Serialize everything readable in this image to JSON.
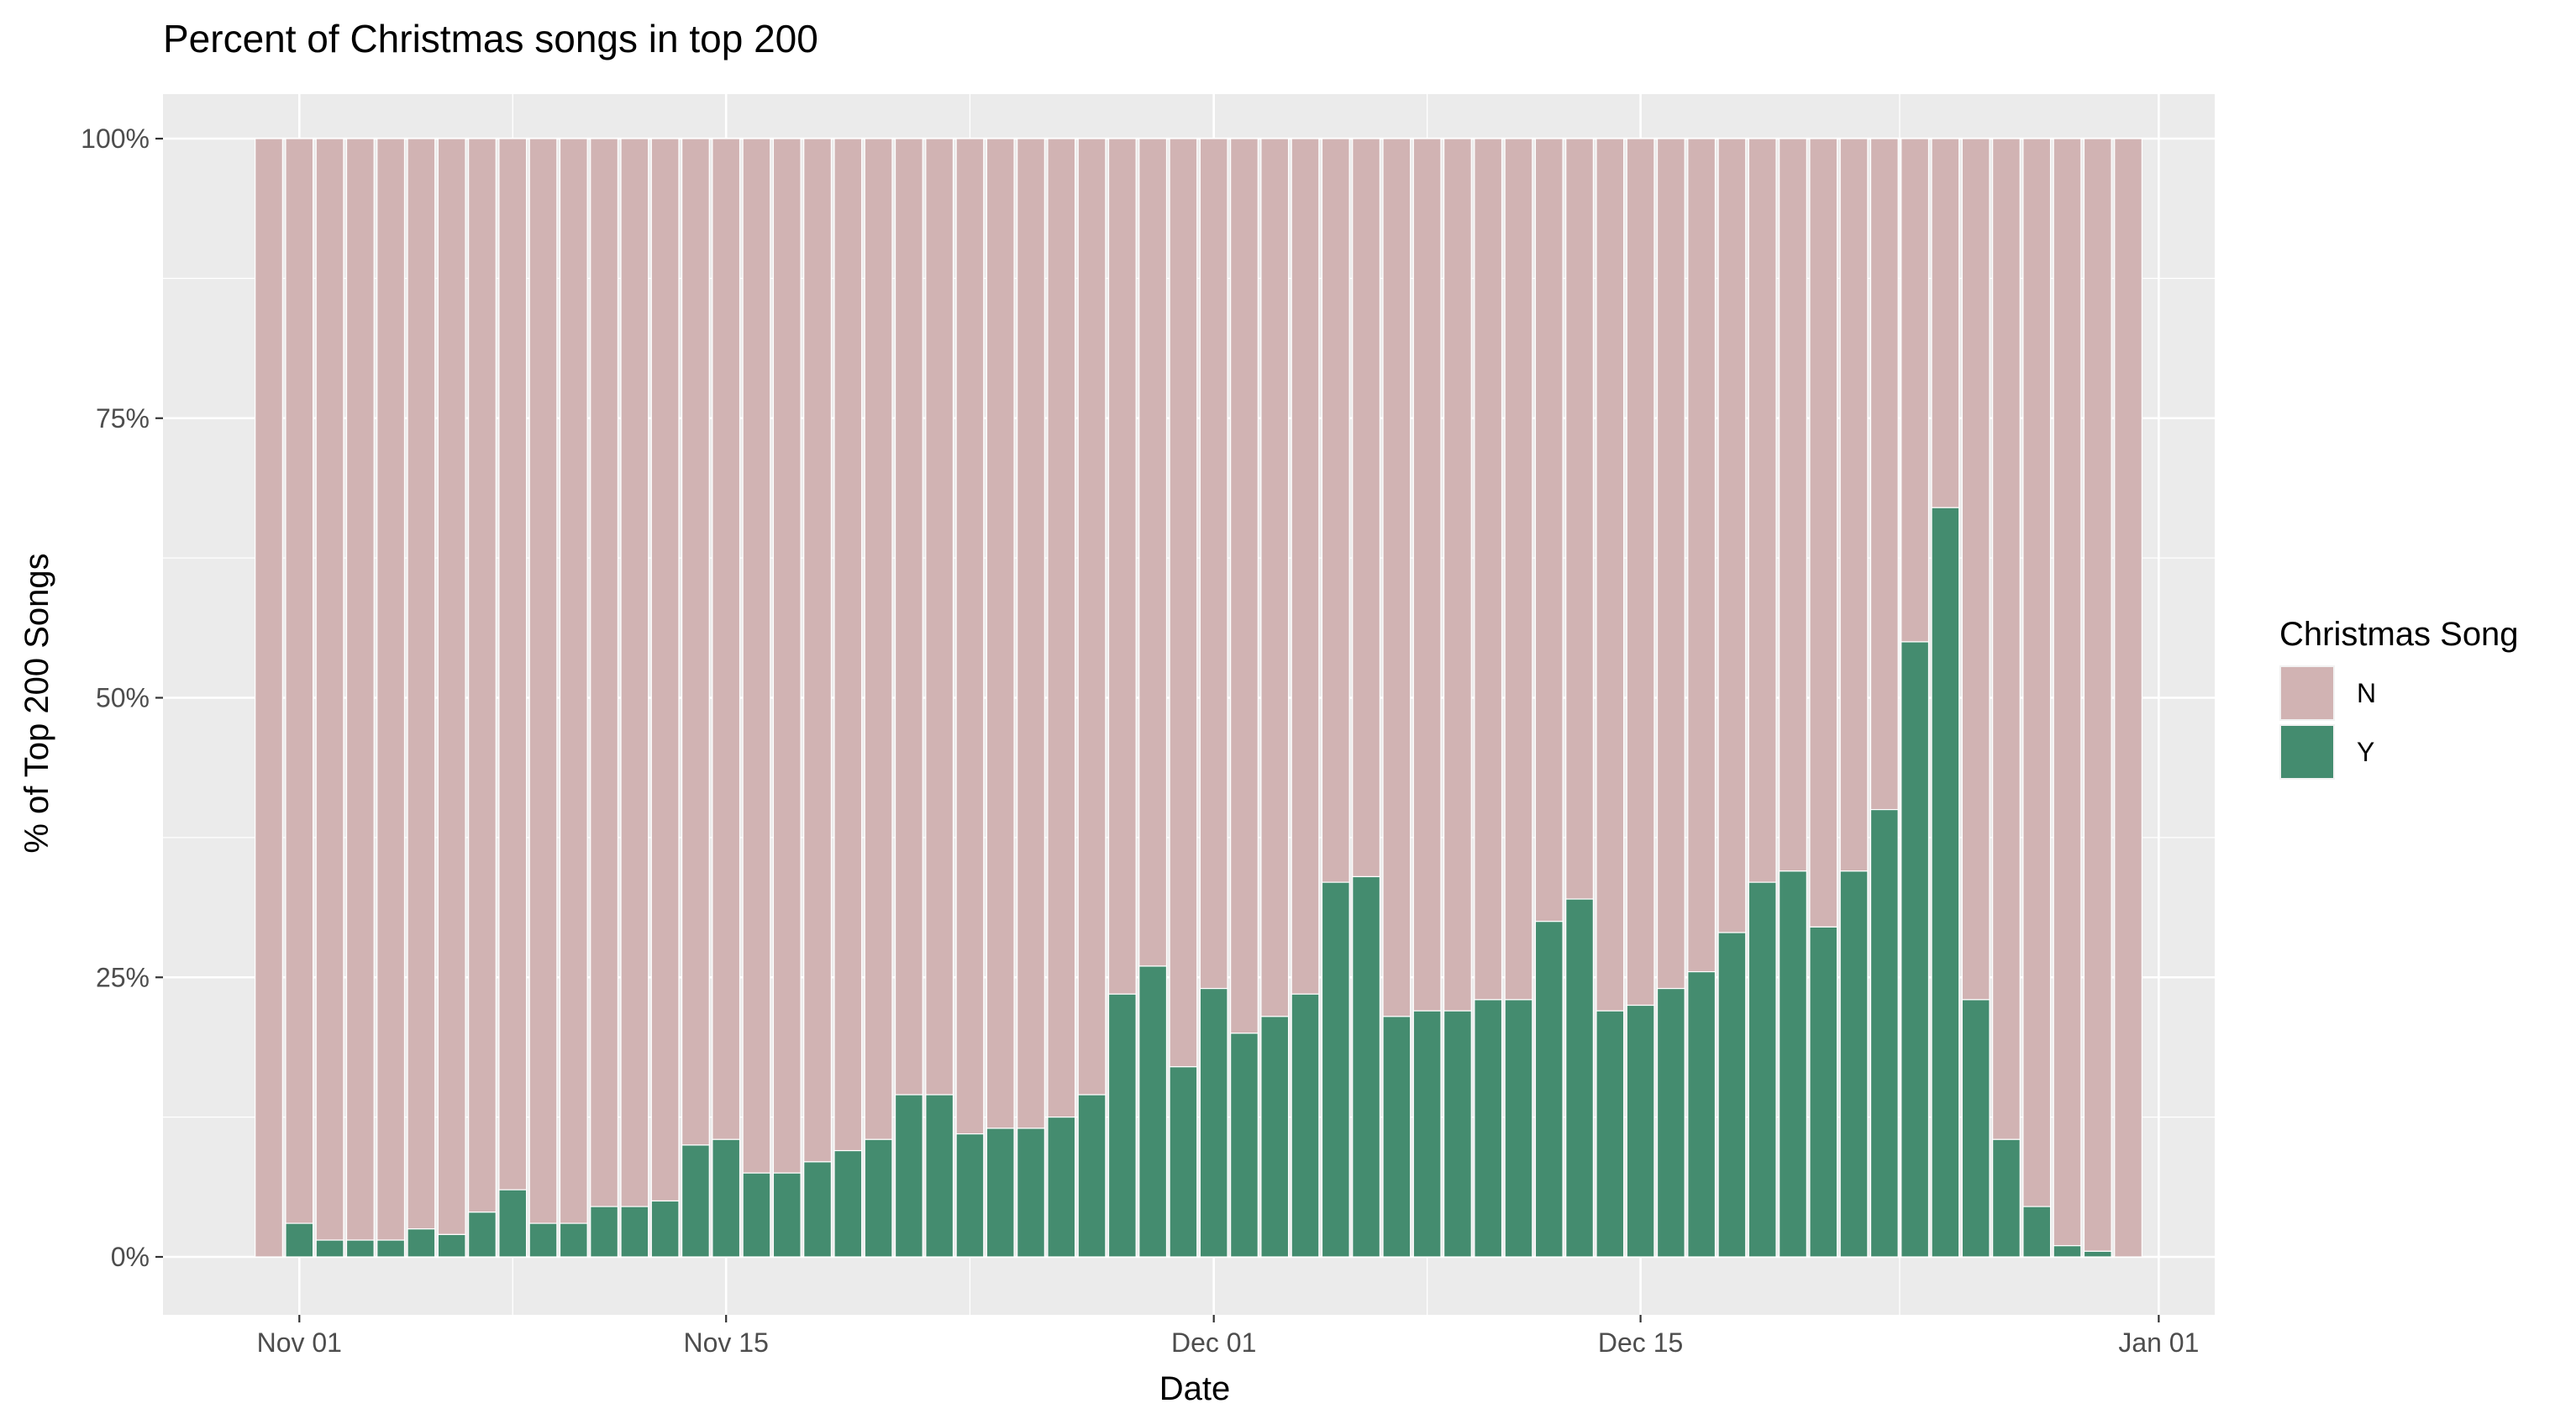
{
  "chart_data": {
    "type": "bar",
    "stacked": true,
    "normalized": true,
    "title": "Percent of Christmas songs in top 200",
    "xlabel": "Date",
    "ylabel": "% of Top 200 Songs",
    "x_start": "2019-10-31",
    "x_end": "2019-12-31",
    "x_ticks": [
      {
        "date": "2019-11-01",
        "label": "Nov 01"
      },
      {
        "date": "2019-11-15",
        "label": "Nov 15"
      },
      {
        "date": "2019-12-01",
        "label": "Dec 01"
      },
      {
        "date": "2019-12-15",
        "label": "Dec 15"
      },
      {
        "date": "2020-01-01",
        "label": "Jan 01"
      }
    ],
    "y_ticks": [
      {
        "value": 0,
        "label": "0%"
      },
      {
        "value": 25,
        "label": "25%"
      },
      {
        "value": 50,
        "label": "50%"
      },
      {
        "value": 75,
        "label": "75%"
      },
      {
        "value": 100,
        "label": "100%"
      }
    ],
    "ylim": [
      0,
      100
    ],
    "grid": true,
    "legend_placement": "right",
    "legend": {
      "title": "Christmas Song",
      "entries": [
        {
          "key": "N",
          "label": "N",
          "color": "#d1b3b3"
        },
        {
          "key": "Y",
          "label": "Y",
          "color": "#448c6f"
        }
      ]
    },
    "series": [
      {
        "name": "N",
        "color": "#d1b3b3",
        "values_note": "complement"
      },
      {
        "name": "Y",
        "color": "#448c6f"
      }
    ],
    "y_percent": [
      0,
      3,
      1.5,
      1.5,
      1.5,
      2.5,
      2,
      4,
      6,
      3,
      3,
      4.5,
      4.5,
      5,
      10,
      10.5,
      7.5,
      7.5,
      8.5,
      9.5,
      10.5,
      14.5,
      14.5,
      11,
      11.5,
      11.5,
      12.5,
      14.5,
      23.5,
      26,
      17,
      24,
      20,
      21.5,
      23.5,
      33.5,
      34,
      21.5,
      22,
      22,
      23,
      23,
      30,
      32,
      22,
      22.5,
      24,
      25.5,
      29,
      33.5,
      34.5,
      29.5,
      34.5,
      40,
      55,
      67,
      23,
      10.5,
      4.5,
      1,
      0.5,
      0
    ]
  },
  "colors": {
    "panel_background": "#ebebeb",
    "grid_major": "#ffffff",
    "bar_outline": "#ffffff"
  }
}
